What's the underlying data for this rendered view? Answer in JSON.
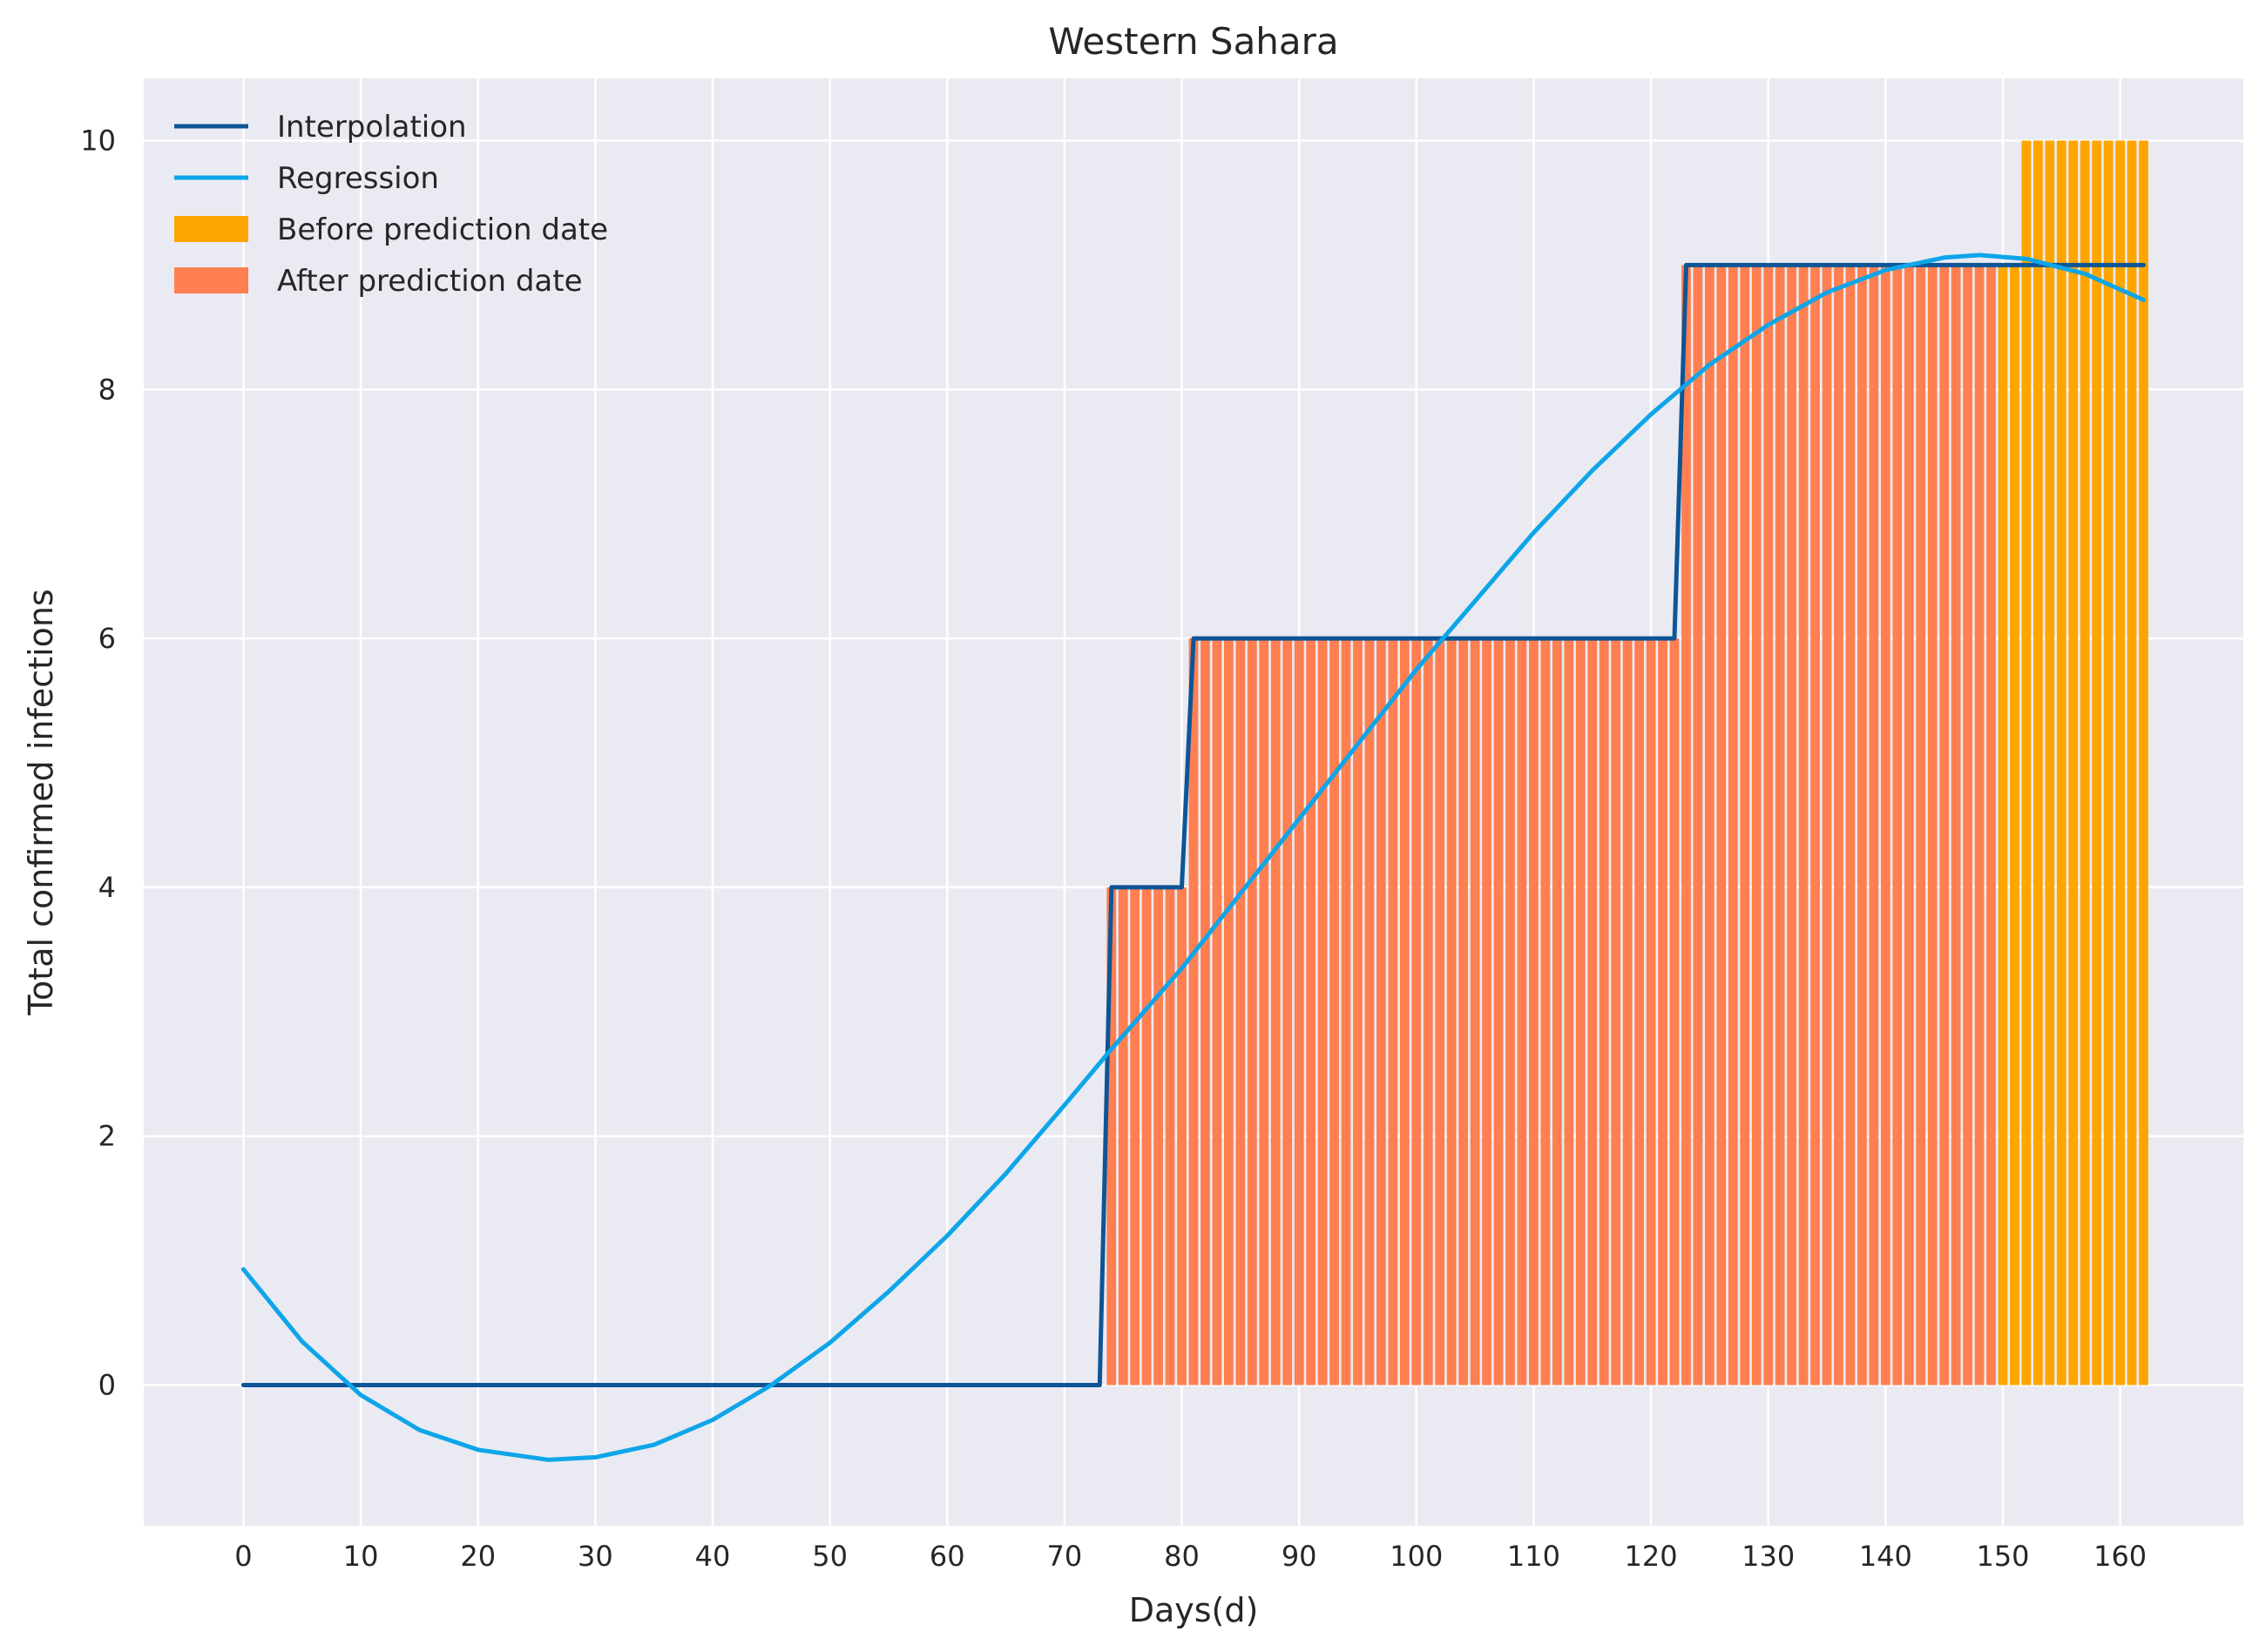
{
  "chart_data": {
    "type": "bar",
    "title": "Western Sahara",
    "xlabel": "Days(d)",
    "ylabel": "Total confirmed infections",
    "xlim": [
      -8.5,
      170.5
    ],
    "ylim": [
      -1.13,
      10.5
    ],
    "xticks": [
      0,
      10,
      20,
      30,
      40,
      50,
      60,
      70,
      80,
      90,
      100,
      110,
      120,
      130,
      140,
      150,
      160
    ],
    "yticks": [
      0,
      2,
      4,
      6,
      8,
      10
    ],
    "grid": true,
    "legend": {
      "placement": "upper-left",
      "entries": [
        "Interpolation",
        "Regression",
        "Before prediction date",
        "After prediction date"
      ]
    },
    "colors": {
      "interpolation": "#0d5596",
      "regression": "#0ea5e9",
      "before_prediction": "#ffa500",
      "after_prediction": "#ff7f50",
      "background": "#eaeaf2",
      "grid": "#ffffff"
    },
    "series": [
      {
        "name": "Interpolation",
        "kind": "line",
        "points": [
          [
            0,
            0
          ],
          [
            73,
            0
          ],
          [
            74,
            4
          ],
          [
            80,
            4
          ],
          [
            81,
            6
          ],
          [
            122,
            6
          ],
          [
            123,
            9
          ],
          [
            162,
            9
          ]
        ]
      },
      {
        "name": "Regression",
        "kind": "line",
        "points": [
          [
            0,
            0.93
          ],
          [
            5,
            0.35
          ],
          [
            10,
            -0.08
          ],
          [
            15,
            -0.36
          ],
          [
            20,
            -0.52
          ],
          [
            26,
            -0.6
          ],
          [
            30,
            -0.58
          ],
          [
            35,
            -0.48
          ],
          [
            40,
            -0.28
          ],
          [
            45,
            0.0
          ],
          [
            50,
            0.34
          ],
          [
            55,
            0.75
          ],
          [
            60,
            1.2
          ],
          [
            65,
            1.7
          ],
          [
            70,
            2.25
          ],
          [
            74,
            2.7
          ],
          [
            80,
            3.35
          ],
          [
            85,
            3.95
          ],
          [
            90,
            4.55
          ],
          [
            95,
            5.15
          ],
          [
            100,
            5.75
          ],
          [
            105,
            6.3
          ],
          [
            110,
            6.85
          ],
          [
            115,
            7.35
          ],
          [
            120,
            7.8
          ],
          [
            125,
            8.2
          ],
          [
            130,
            8.52
          ],
          [
            135,
            8.78
          ],
          [
            140,
            8.96
          ],
          [
            145,
            9.06
          ],
          [
            148,
            9.08
          ],
          [
            152,
            9.05
          ],
          [
            157,
            8.93
          ],
          [
            162,
            8.72
          ]
        ]
      },
      {
        "name": "After prediction date",
        "kind": "bars",
        "x_start": 74,
        "x_end": 149,
        "steps": [
          [
            74,
            80,
            4
          ],
          [
            81,
            122,
            6
          ],
          [
            123,
            149,
            9
          ]
        ]
      },
      {
        "name": "Before prediction date",
        "kind": "bars",
        "x_start": 150,
        "x_end": 162,
        "steps": [
          [
            150,
            151,
            9
          ],
          [
            152,
            162,
            10
          ]
        ]
      }
    ]
  }
}
